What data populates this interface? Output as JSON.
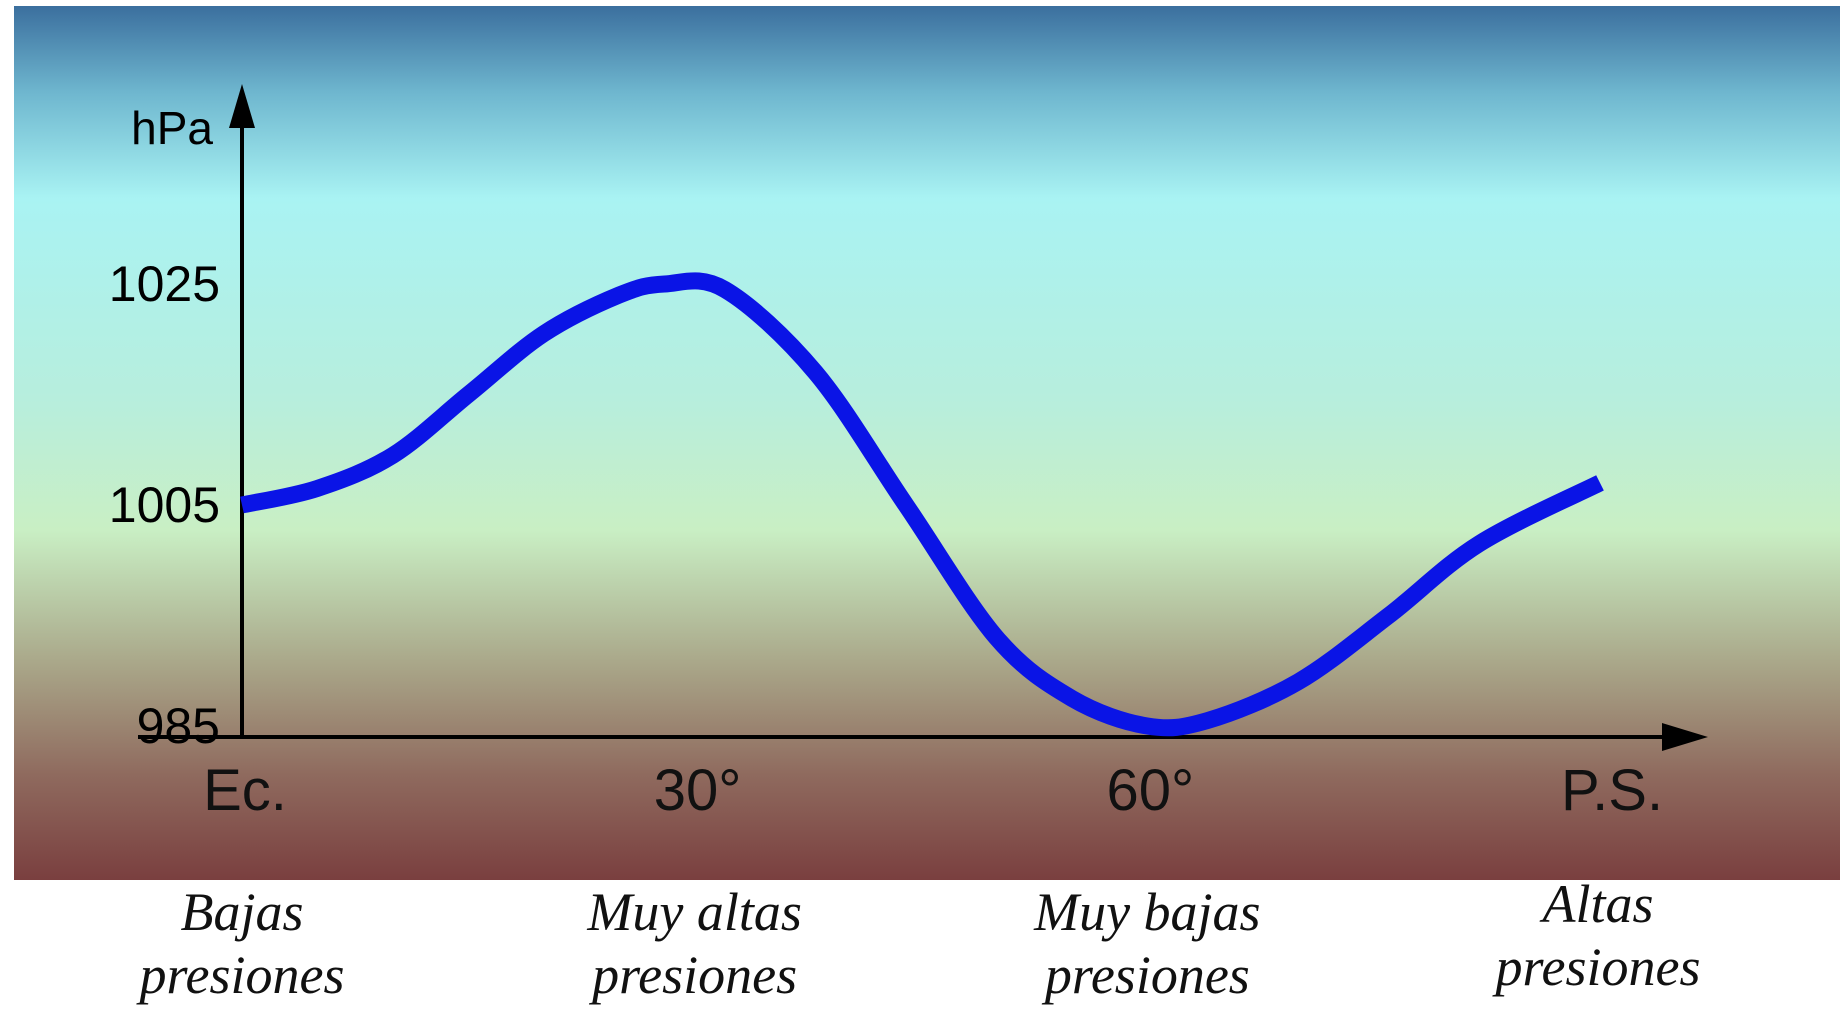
{
  "chart_data": {
    "type": "line",
    "title": "",
    "xlabel": "",
    "ylabel": "hPa",
    "x_ticks": [
      {
        "value": 0,
        "label": "Ec."
      },
      {
        "value": 30,
        "label": "30°"
      },
      {
        "value": 60,
        "label": "60°"
      },
      {
        "value": 90,
        "label": "P.S."
      }
    ],
    "y_ticks": [
      {
        "value": 985,
        "label": "985"
      },
      {
        "value": 1005,
        "label": "1005"
      },
      {
        "value": 1025,
        "label": "1025"
      }
    ],
    "xlim": [
      0,
      90
    ],
    "ylim": [
      980,
      1038
    ],
    "grid": false,
    "colors": {
      "line": "#0a14e6",
      "axis": "#000000",
      "bg_top": "#3b6f9e",
      "bg_mid": "#a9f3ee",
      "bg_low": "#cfe8b8",
      "bg_bottom": "#7a3f3f"
    },
    "series": [
      {
        "values": [
          {
            "x": 0,
            "y": 1005
          },
          {
            "x": 5,
            "y": 1006.5
          },
          {
            "x": 10,
            "y": 1009.5
          },
          {
            "x": 15,
            "y": 1015
          },
          {
            "x": 20,
            "y": 1020.5
          },
          {
            "x": 25,
            "y": 1024
          },
          {
            "x": 28,
            "y": 1025
          },
          {
            "x": 32,
            "y": 1024.5
          },
          {
            "x": 38,
            "y": 1017
          },
          {
            "x": 44,
            "y": 1005
          },
          {
            "x": 50,
            "y": 993
          },
          {
            "x": 55,
            "y": 987.5
          },
          {
            "x": 60,
            "y": 985
          },
          {
            "x": 64,
            "y": 985.5
          },
          {
            "x": 70,
            "y": 989
          },
          {
            "x": 76,
            "y": 995
          },
          {
            "x": 82,
            "y": 1001.5
          },
          {
            "x": 90,
            "y": 1007
          }
        ]
      }
    ],
    "annotations": [
      {
        "x": 0,
        "lines": [
          "Bajas",
          "presiones"
        ]
      },
      {
        "x": 30,
        "lines": [
          "Muy altas",
          "presiones"
        ]
      },
      {
        "x": 60,
        "lines": [
          "Muy bajas",
          "presiones"
        ]
      },
      {
        "x": 90,
        "lines": [
          "Altas",
          "presiones"
        ]
      }
    ]
  }
}
